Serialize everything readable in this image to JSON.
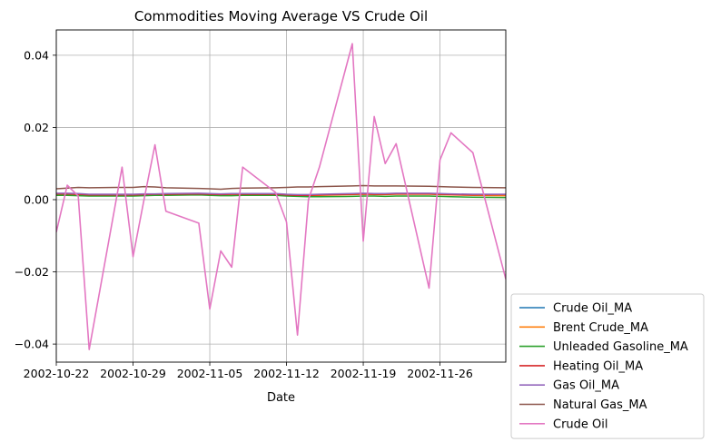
{
  "chart_data": {
    "type": "line",
    "title": "Commodities Moving Average VS Crude Oil",
    "xlabel": "Date",
    "ylabel": "",
    "x": [
      "2002-10-22",
      "2002-10-23",
      "2002-10-24",
      "2002-10-25",
      "2002-10-28",
      "2002-10-29",
      "2002-10-30",
      "2002-10-31",
      "2002-11-01",
      "2002-11-04",
      "2002-11-05",
      "2002-11-06",
      "2002-11-07",
      "2002-11-08",
      "2002-11-11",
      "2002-11-12",
      "2002-11-13",
      "2002-11-14",
      "2002-11-15",
      "2002-11-18",
      "2002-11-19",
      "2002-11-20",
      "2002-11-21",
      "2002-11-22",
      "2002-11-25",
      "2002-11-26",
      "2002-11-27",
      "2002-11-29",
      "2002-12-02"
    ],
    "xlim": [
      "2002-10-22",
      "2002-12-02"
    ],
    "xticks": [
      "2002-10-22",
      "2002-10-29",
      "2002-11-05",
      "2002-11-12",
      "2002-11-19",
      "2002-11-26"
    ],
    "ylim": [
      -0.045,
      0.047
    ],
    "yticks": [
      -0.04,
      -0.02,
      0.0,
      0.02,
      0.04
    ],
    "ytick_labels": [
      "−0.04",
      "−0.02",
      "0.00",
      "0.02",
      "0.04"
    ],
    "grid": true,
    "legend_position": "outside-bottom-right",
    "series": [
      {
        "name": "Crude Oil_MA",
        "color": "#1f77b4",
        "values": [
          0.0017,
          0.0017,
          0.0016,
          0.0013,
          0.0013,
          0.0013,
          0.0014,
          0.0015,
          0.0016,
          0.0017,
          0.0016,
          0.0015,
          0.0016,
          0.0016,
          0.0016,
          0.0014,
          0.0012,
          0.0012,
          0.0013,
          0.0015,
          0.0016,
          0.0015,
          0.0015,
          0.0016,
          0.0016,
          0.0015,
          0.0014,
          0.0013,
          0.0012
        ]
      },
      {
        "name": "Brent Crude_MA",
        "color": "#ff7f0e",
        "values": [
          0.0014,
          0.0015,
          0.0014,
          0.0011,
          0.0011,
          0.0012,
          0.0013,
          0.0014,
          0.0015,
          0.0016,
          0.0015,
          0.0014,
          0.0015,
          0.0015,
          0.0015,
          0.0013,
          0.0011,
          0.0011,
          0.0012,
          0.0014,
          0.0015,
          0.0014,
          0.0014,
          0.0015,
          0.0015,
          0.0014,
          0.0013,
          0.0012,
          0.0011
        ]
      },
      {
        "name": "Unleaded Gasoline_MA",
        "color": "#2ca02c",
        "values": [
          0.0012,
          0.0012,
          0.0011,
          0.001,
          0.001,
          0.001,
          0.0011,
          0.0012,
          0.0012,
          0.0013,
          0.0012,
          0.0011,
          0.0011,
          0.0012,
          0.0012,
          0.001,
          0.0009,
          0.0008,
          0.0008,
          0.0009,
          0.001,
          0.001,
          0.0009,
          0.001,
          0.001,
          0.0009,
          0.0008,
          0.0007,
          0.0006
        ]
      },
      {
        "name": "Heating Oil_MA",
        "color": "#d62728",
        "values": [
          0.0016,
          0.0016,
          0.0015,
          0.0013,
          0.0013,
          0.0013,
          0.0014,
          0.0015,
          0.0015,
          0.0016,
          0.0015,
          0.0014,
          0.0015,
          0.0015,
          0.0015,
          0.0013,
          0.0012,
          0.0012,
          0.0013,
          0.0015,
          0.0016,
          0.0015,
          0.0015,
          0.0016,
          0.0016,
          0.0015,
          0.0014,
          0.0013,
          0.0014
        ]
      },
      {
        "name": "Gas Oil_MA",
        "color": "#9467bd",
        "values": [
          0.0018,
          0.0018,
          0.0017,
          0.0015,
          0.0015,
          0.0015,
          0.0016,
          0.0016,
          0.0017,
          0.0018,
          0.0017,
          0.0016,
          0.0017,
          0.0017,
          0.0017,
          0.0015,
          0.0014,
          0.0014,
          0.0015,
          0.0017,
          0.0018,
          0.0017,
          0.0017,
          0.0018,
          0.0018,
          0.0017,
          0.0016,
          0.0015,
          0.0015
        ]
      },
      {
        "name": "Natural Gas_MA",
        "color": "#8c564b",
        "values": [
          0.003,
          0.0032,
          0.0034,
          0.0033,
          0.0034,
          0.0034,
          0.0036,
          0.0035,
          0.0033,
          0.0031,
          0.003,
          0.0029,
          0.0031,
          0.0032,
          0.0033,
          0.0034,
          0.0035,
          0.0035,
          0.0036,
          0.0038,
          0.0039,
          0.0038,
          0.0038,
          0.0038,
          0.0037,
          0.0036,
          0.0035,
          0.0034,
          0.0033
        ]
      },
      {
        "name": "Crude Oil",
        "color": "#e377c2",
        "values": [
          -0.009,
          0.004,
          0.001,
          -0.0415,
          0.009,
          -0.0158,
          0.0,
          0.0152,
          -0.0032,
          -0.0065,
          -0.0303,
          -0.0142,
          -0.0187,
          0.009,
          0.002,
          -0.0062,
          -0.0375,
          0.0,
          0.009,
          0.0432,
          -0.0115,
          0.023,
          0.01,
          0.0155,
          -0.0245,
          0.011,
          0.0185,
          0.013,
          -0.022
        ]
      }
    ]
  }
}
